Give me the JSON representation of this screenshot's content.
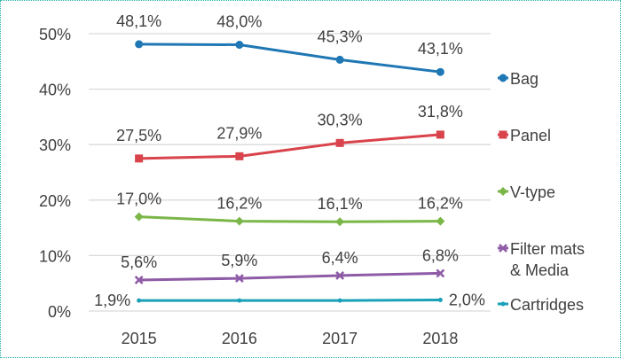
{
  "chart_data": {
    "type": "line",
    "title": "",
    "xlabel": "",
    "ylabel": "",
    "categories": [
      "2015",
      "2016",
      "2017",
      "2018"
    ],
    "ylim": [
      0,
      50
    ],
    "yticks": [
      0,
      10,
      20,
      30,
      40,
      50
    ],
    "ytick_labels": [
      "0%",
      "10%",
      "20%",
      "30%",
      "40%",
      "50%"
    ],
    "grid": true,
    "legend_position": "right",
    "series": [
      {
        "name": "Bag",
        "legend_lines": [
          "Bag"
        ],
        "color": "#1f77b4",
        "marker": "circle",
        "values": [
          48.1,
          48.0,
          45.3,
          43.1
        ],
        "labels": [
          "48,1%",
          "48,0%",
          "45,3%",
          "43,1%"
        ]
      },
      {
        "name": "Panel",
        "legend_lines": [
          "Panel"
        ],
        "color": "#d9434b",
        "marker": "square",
        "values": [
          27.5,
          27.9,
          30.3,
          31.8
        ],
        "labels": [
          "27,5%",
          "27,9%",
          "30,3%",
          "31,8%"
        ]
      },
      {
        "name": "V-type",
        "legend_lines": [
          "V-type"
        ],
        "color": "#7ab648",
        "marker": "diamond",
        "values": [
          17.0,
          16.2,
          16.1,
          16.2
        ],
        "labels": [
          "17,0%",
          "16,2%",
          "16,1%",
          "16,2%"
        ]
      },
      {
        "name": "Filter mats & Media",
        "legend_lines": [
          "Filter mats",
          "& Media"
        ],
        "color": "#8e5ba6",
        "marker": "x",
        "values": [
          5.6,
          5.9,
          6.4,
          6.8
        ],
        "labels": [
          "5,6%",
          "5,9%",
          "6,4%",
          "6,8%"
        ]
      },
      {
        "name": "Cartridges",
        "legend_lines": [
          "Cartridges"
        ],
        "color": "#1aa0b8",
        "marker": "dash",
        "values": [
          1.9,
          1.9,
          1.9,
          2.0
        ],
        "labels": [
          "1,9%",
          "",
          "",
          "2,0%"
        ]
      }
    ],
    "gridline_color": "#d9d9d9",
    "text_color": "#404040"
  }
}
